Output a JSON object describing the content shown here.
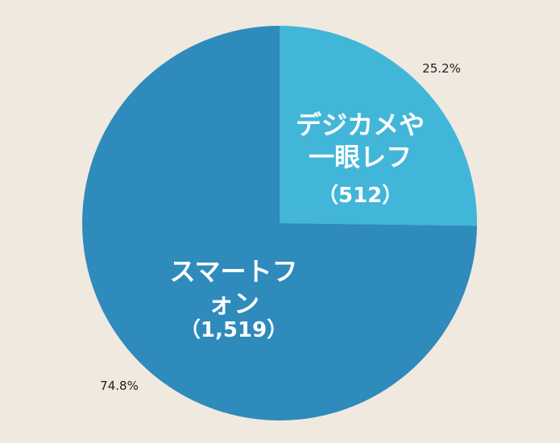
{
  "chart_data": {
    "type": "pie",
    "categories": [
      "デジカメや一眼レフ",
      "スマートフォン"
    ],
    "values": [
      512,
      1519
    ],
    "value_labels": [
      "（512）",
      "（1,519）"
    ],
    "percents": [
      25.2,
      74.8
    ],
    "percent_labels": [
      "25.2%",
      "74.8%"
    ],
    "colors": [
      "#42b6d9",
      "#2e8bbc"
    ]
  }
}
